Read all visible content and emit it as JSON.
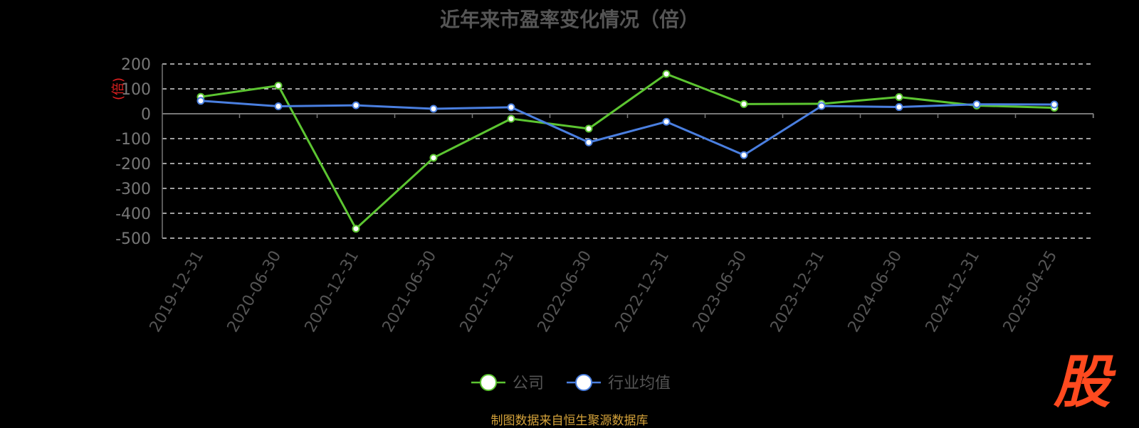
{
  "chart_data": {
    "type": "line",
    "title": "近年来市盈率变化情况（倍）",
    "xlabel": "",
    "ylabel": "(倍)",
    "ylim": [
      -500,
      200
    ],
    "yticks": [
      200,
      100,
      0,
      -100,
      -200,
      -300,
      -400,
      -500
    ],
    "grid": true,
    "legend_position": "bottom-center",
    "categories": [
      "2019-12-31",
      "2020-06-30",
      "2020-12-31",
      "2021-06-30",
      "2021-12-31",
      "2022-06-30",
      "2022-12-31",
      "2023-06-30",
      "2023-12-31",
      "2024-06-30",
      "2024-12-31",
      "2025-04-25"
    ],
    "series": [
      {
        "name": "公司",
        "color": "#5cc531",
        "values": [
          68,
          113,
          -462,
          -177,
          -20,
          -60,
          160,
          39,
          40,
          67,
          33,
          24
        ]
      },
      {
        "name": "行业均值",
        "color": "#4a7fe0",
        "values": [
          52,
          30,
          34,
          20,
          26,
          -115,
          -32,
          -166,
          31,
          27,
          38,
          37
        ]
      }
    ]
  },
  "source_note": "制图数据来自恒生聚源数据库",
  "watermark_text": "股"
}
